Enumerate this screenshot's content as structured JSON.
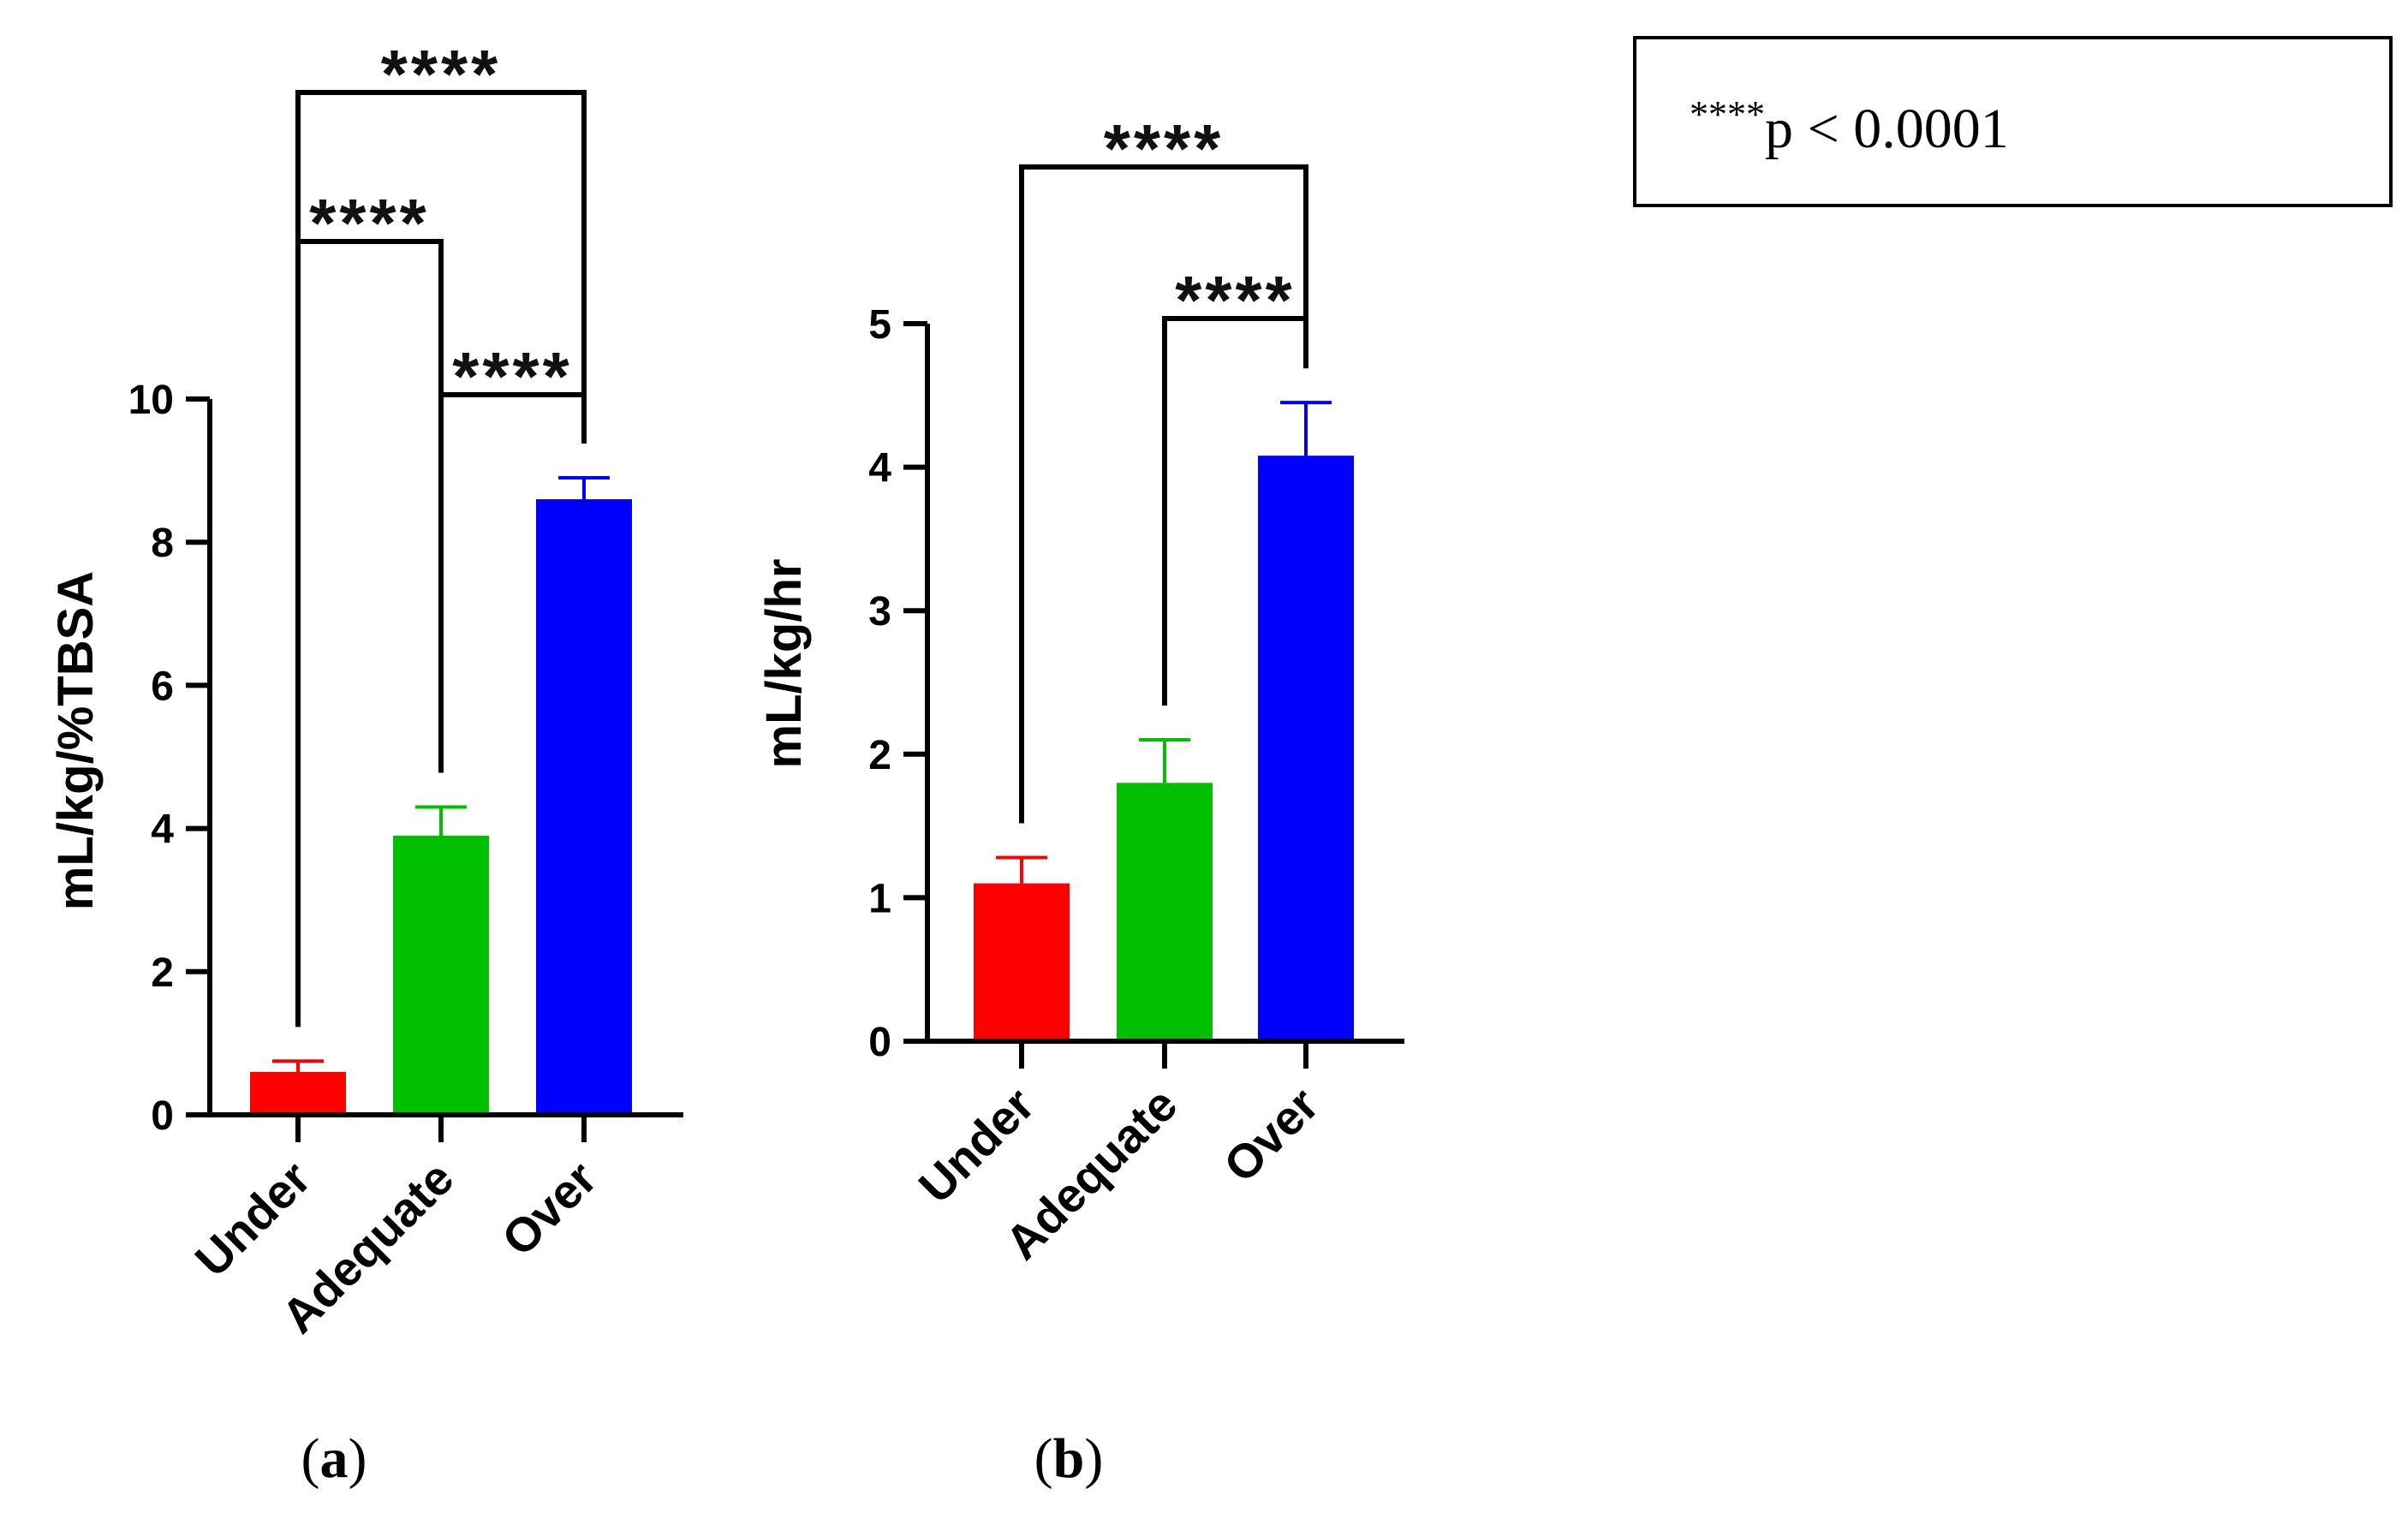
{
  "chart_data": [
    {
      "panel_label": "a",
      "type": "bar",
      "categories": [
        "Under",
        "Adequate",
        "Over"
      ],
      "values": [
        0.6,
        3.9,
        8.6
      ],
      "errors": [
        0.15,
        0.4,
        0.3
      ],
      "colors": [
        "#ff0000",
        "#00c000",
        "#0000ff"
      ],
      "ylabel": "mL/kg/%TBSA",
      "xlabel": "",
      "ylim": [
        0,
        10
      ],
      "yticks": [
        0,
        2,
        4,
        6,
        8,
        10
      ],
      "yticklabels": [
        "0",
        "2",
        "4",
        "6",
        "8",
        "10"
      ],
      "comparisons": [
        {
          "from": 0,
          "to": 2,
          "label": "****"
        },
        {
          "from": 0,
          "to": 1,
          "label": "****"
        },
        {
          "from": 1,
          "to": 2,
          "label": "****"
        }
      ]
    },
    {
      "panel_label": "b",
      "type": "bar",
      "categories": [
        "Under",
        "Adequate",
        "Over"
      ],
      "values": [
        1.1,
        1.8,
        4.08
      ],
      "errors": [
        0.18,
        0.3,
        0.37
      ],
      "colors": [
        "#ff0000",
        "#00c000",
        "#0000ff"
      ],
      "ylabel": "mL/kg/hr",
      "xlabel": "",
      "ylim": [
        0,
        5
      ],
      "yticks": [
        0,
        1,
        2,
        3,
        4,
        5
      ],
      "yticklabels": [
        "0",
        "1",
        "2",
        "3",
        "4",
        "5"
      ],
      "comparisons": [
        {
          "from": 0,
          "to": 2,
          "label": "****"
        },
        {
          "from": 1,
          "to": 2,
          "label": "****"
        }
      ]
    }
  ],
  "legend": {
    "superscript": "****",
    "text": "p < 0.0001"
  }
}
